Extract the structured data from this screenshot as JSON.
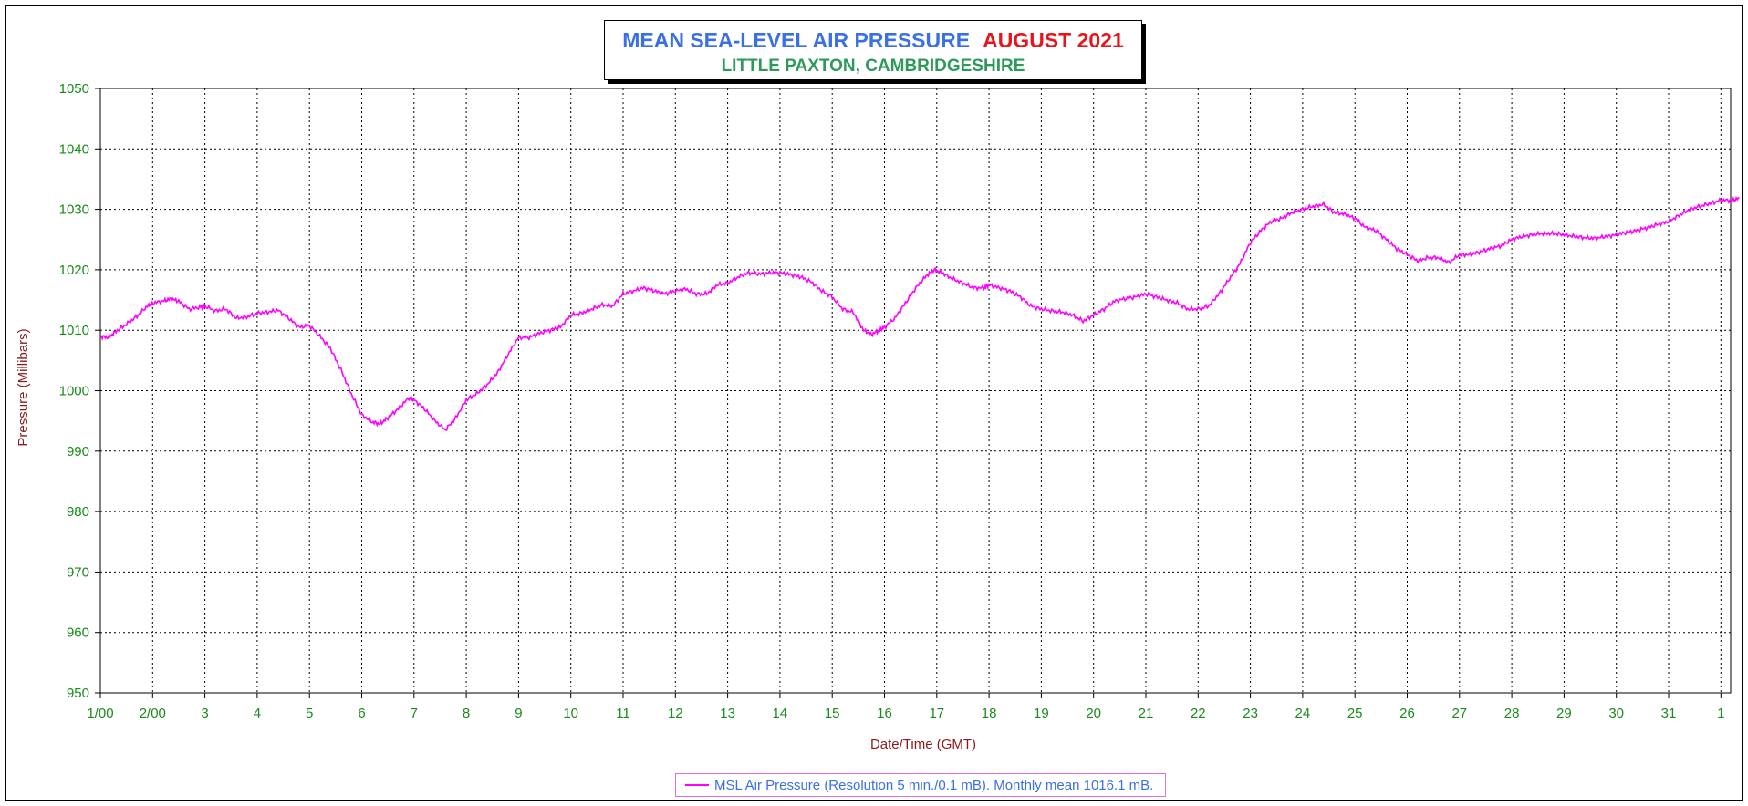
{
  "title": {
    "main": "MEAN SEA-LEVEL AIR PRESSURE",
    "month": "AUGUST 2021",
    "location": "LITTLE PAXTON, CAMBRIDGESHIRE"
  },
  "legend": {
    "label": "MSL Air Pressure (Resolution 5 min./0.1 mB). Monthly mean 1016.1 mB."
  },
  "colors": {
    "series": "#ff00ff",
    "tick_labels": "#1a8a1a",
    "axis_titles": "#8b1a1a",
    "title_main": "#3a6fe6",
    "title_month": "#e8141b",
    "title_location": "#2e9a5a"
  },
  "chart_data": {
    "type": "line",
    "xlabel": "Date/Time (GMT)",
    "ylabel": "Pressure (Millibars)",
    "ylim": [
      950,
      1050
    ],
    "xlim": [
      1,
      32.35
    ],
    "grid": true,
    "legend_position": "bottom-center",
    "x_tick_labels": [
      "1/00",
      "2/00",
      "3",
      "4",
      "5",
      "6",
      "7",
      "8",
      "9",
      "10",
      "11",
      "12",
      "13",
      "14",
      "15",
      "16",
      "17",
      "18",
      "19",
      "20",
      "21",
      "22",
      "23",
      "24",
      "25",
      "26",
      "27",
      "28",
      "29",
      "30",
      "31",
      "1"
    ],
    "y_tick_labels": [
      "1050",
      "1040",
      "1030",
      "1020",
      "1010",
      "1000",
      "990",
      "980",
      "970",
      "960",
      "950"
    ],
    "series": [
      {
        "name": "MSL Air Pressure (Resolution 5 min./0.1 mB). Monthly mean 1016.1 mB.",
        "x": [
          1.0,
          1.15,
          1.3,
          1.5,
          1.7,
          1.9,
          2.0,
          2.2,
          2.35,
          2.5,
          2.7,
          2.9,
          3.0,
          3.2,
          3.4,
          3.6,
          3.8,
          4.0,
          4.2,
          4.4,
          4.6,
          4.8,
          5.0,
          5.2,
          5.4,
          5.6,
          5.8,
          6.0,
          6.2,
          6.35,
          6.5,
          6.7,
          6.9,
          7.0,
          7.2,
          7.4,
          7.6,
          7.8,
          8.0,
          8.2,
          8.4,
          8.6,
          8.8,
          9.0,
          9.2,
          9.4,
          9.6,
          9.8,
          10.0,
          10.2,
          10.4,
          10.6,
          10.8,
          11.0,
          11.2,
          11.4,
          11.6,
          11.8,
          12.0,
          12.2,
          12.4,
          12.6,
          12.8,
          13.0,
          13.2,
          13.4,
          13.6,
          13.8,
          14.0,
          14.2,
          14.4,
          14.6,
          14.8,
          15.0,
          15.2,
          15.4,
          15.6,
          15.75,
          15.9,
          16.0,
          16.2,
          16.4,
          16.6,
          16.8,
          16.95,
          17.1,
          17.3,
          17.5,
          17.7,
          17.9,
          18.0,
          18.2,
          18.4,
          18.6,
          18.8,
          19.0,
          19.2,
          19.4,
          19.6,
          19.8,
          20.0,
          20.2,
          20.4,
          20.6,
          20.8,
          21.0,
          21.2,
          21.4,
          21.6,
          21.8,
          22.0,
          22.2,
          22.4,
          22.6,
          22.8,
          23.0,
          23.2,
          23.4,
          23.6,
          23.8,
          24.0,
          24.2,
          24.4,
          24.6,
          24.8,
          25.0,
          25.2,
          25.4,
          25.6,
          25.8,
          26.0,
          26.2,
          26.4,
          26.6,
          26.8,
          27.0,
          27.2,
          27.4,
          27.6,
          27.8,
          28.0,
          28.2,
          28.4,
          28.6,
          28.8,
          29.0,
          29.2,
          29.4,
          29.6,
          29.8,
          30.0,
          30.2,
          30.4,
          30.6,
          30.8,
          31.0,
          31.2,
          31.4,
          31.6,
          31.8,
          32.0,
          32.2,
          32.35
        ],
        "y": [
          1009.0,
          1008.8,
          1009.8,
          1011.0,
          1012.3,
          1014.0,
          1014.5,
          1014.8,
          1015.2,
          1014.8,
          1013.5,
          1013.8,
          1014.0,
          1013.2,
          1013.5,
          1012.0,
          1012.2,
          1012.8,
          1013.0,
          1013.3,
          1012.0,
          1010.5,
          1010.8,
          1009.0,
          1007.0,
          1003.5,
          999.5,
          996.0,
          994.8,
          994.5,
          995.5,
          997.0,
          998.8,
          998.5,
          997.0,
          995.0,
          993.5,
          995.5,
          998.5,
          999.5,
          1001.0,
          1003.0,
          1006.0,
          1008.8,
          1008.8,
          1009.5,
          1010.0,
          1010.5,
          1012.5,
          1012.8,
          1013.5,
          1014.2,
          1014.0,
          1016.0,
          1016.5,
          1017.0,
          1016.5,
          1016.0,
          1016.5,
          1016.8,
          1016.0,
          1016.0,
          1017.5,
          1017.8,
          1018.8,
          1019.5,
          1019.3,
          1019.5,
          1019.5,
          1019.2,
          1018.8,
          1018.0,
          1016.5,
          1015.5,
          1013.5,
          1013.0,
          1010.0,
          1009.3,
          1010.0,
          1010.5,
          1012.0,
          1014.5,
          1017.0,
          1019.0,
          1020.0,
          1019.5,
          1018.5,
          1017.8,
          1017.0,
          1017.0,
          1017.5,
          1017.0,
          1016.5,
          1015.5,
          1014.0,
          1013.5,
          1013.2,
          1013.0,
          1012.5,
          1011.5,
          1012.5,
          1013.5,
          1014.8,
          1015.2,
          1015.5,
          1016.0,
          1015.5,
          1015.0,
          1014.5,
          1013.5,
          1013.5,
          1014.0,
          1016.0,
          1018.5,
          1021.0,
          1024.5,
          1026.5,
          1028.0,
          1028.5,
          1029.5,
          1030.0,
          1030.5,
          1030.8,
          1029.5,
          1029.2,
          1028.5,
          1027.0,
          1026.5,
          1025.0,
          1023.5,
          1022.5,
          1021.5,
          1022.0,
          1022.0,
          1021.2,
          1022.5,
          1022.5,
          1023.0,
          1023.5,
          1024.0,
          1025.0,
          1025.5,
          1025.8,
          1026.0,
          1026.0,
          1025.8,
          1025.5,
          1025.3,
          1025.2,
          1025.5,
          1025.8,
          1026.2,
          1026.5,
          1027.0,
          1027.5,
          1028.0,
          1029.0,
          1030.0,
          1030.5,
          1031.0,
          1031.5,
          1031.5,
          1031.8
        ]
      }
    ]
  }
}
